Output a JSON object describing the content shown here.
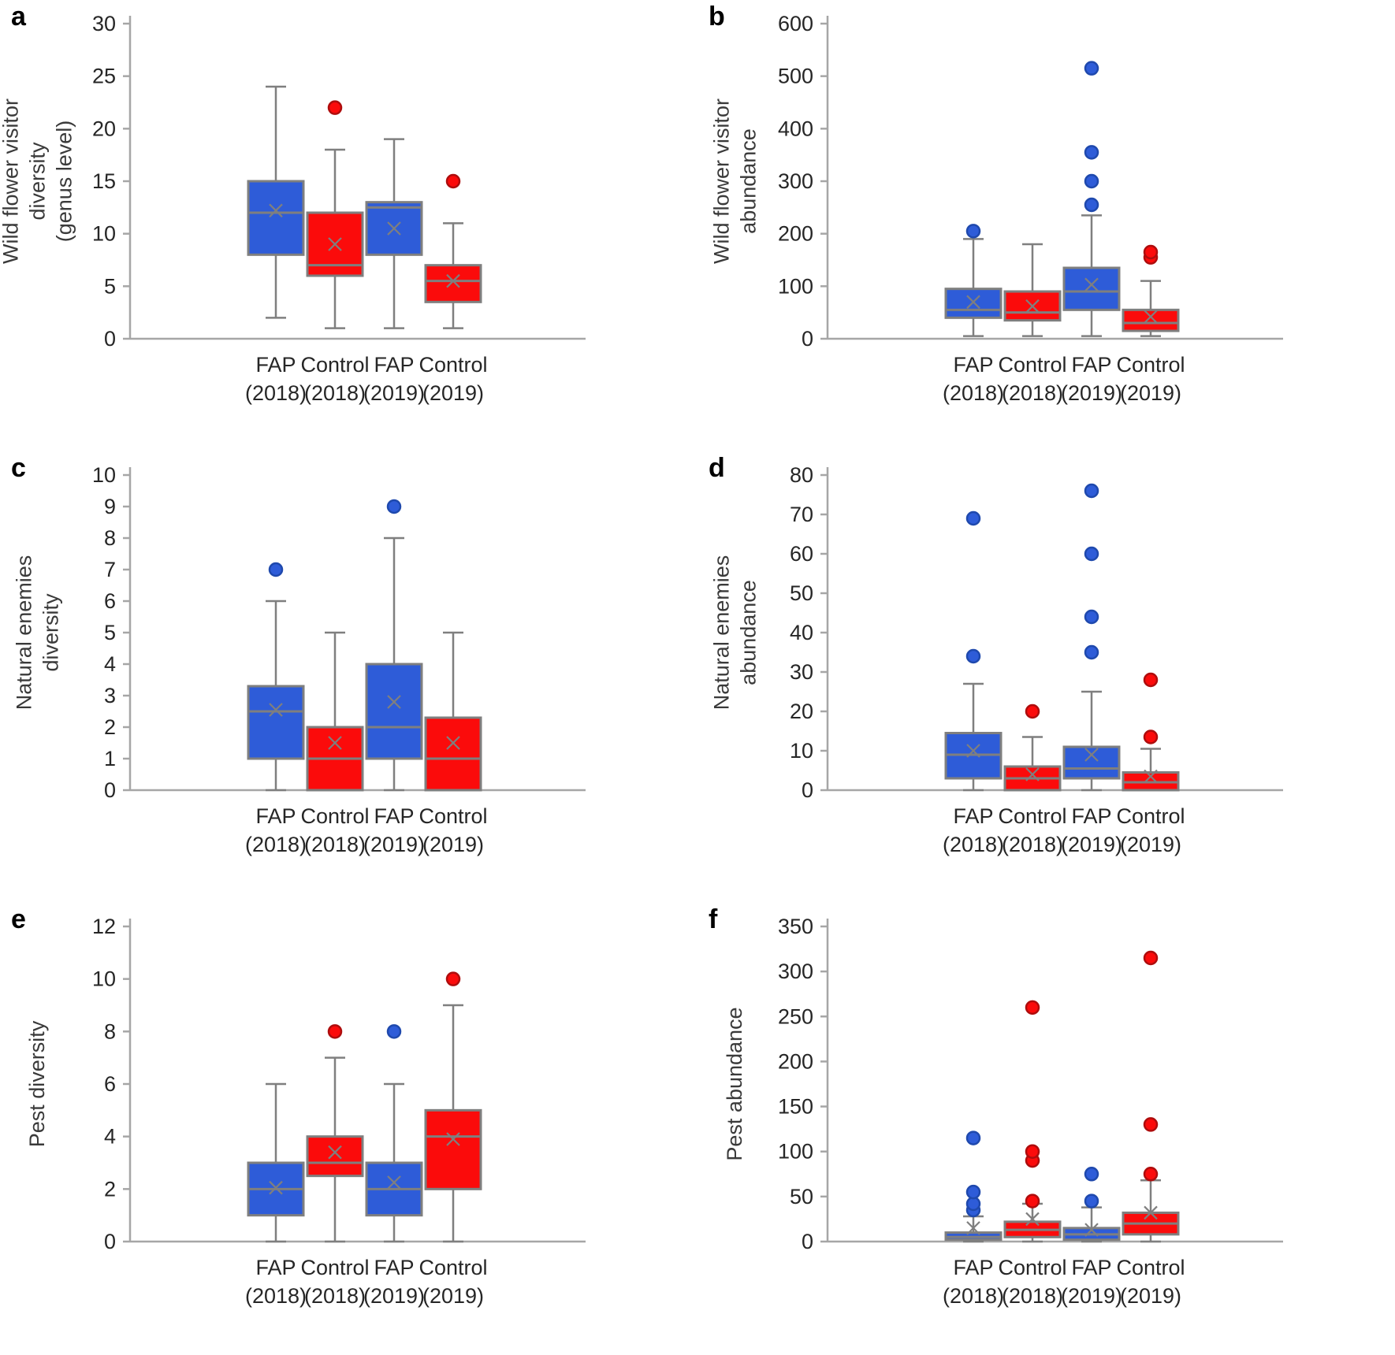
{
  "colors": {
    "blue": "#2e5cd8",
    "blue_edge": "#1f49ad",
    "red": "#fb0b0b",
    "red_edge": "#ae0d0d",
    "box_stroke": "#7f7f7f",
    "axis": "#a6a6a6",
    "mean_marker": "#7f7f7f",
    "text": "#262626"
  },
  "chart_data": [
    {
      "type": "box",
      "letter": "a",
      "ylabel": "Wild flower visitor\ndiversity\n(genus level)",
      "ylim": [
        0,
        30
      ],
      "yticks": [
        0,
        5,
        10,
        15,
        20,
        25,
        30
      ],
      "categories": [
        [
          "FAP",
          "(2018)"
        ],
        [
          "Control",
          "(2018)"
        ],
        [
          "FAP",
          "(2019)"
        ],
        [
          "Control",
          "(2019)"
        ]
      ],
      "boxes": [
        {
          "color": "blue",
          "low": 2,
          "q1": 8,
          "median": 12,
          "mean": 12.2,
          "q3": 15,
          "high": 24,
          "outliers": []
        },
        {
          "color": "red",
          "low": 1,
          "q1": 6,
          "median": 7,
          "mean": 9,
          "q3": 12,
          "high": 18,
          "outliers": [
            22
          ]
        },
        {
          "color": "blue",
          "low": 1,
          "q1": 8,
          "median": 12.5,
          "mean": 10.5,
          "q3": 13,
          "high": 19,
          "outliers": []
        },
        {
          "color": "red",
          "low": 1,
          "q1": 3.5,
          "median": 5.5,
          "mean": 5.5,
          "q3": 7,
          "high": 11,
          "outliers": [
            15
          ]
        }
      ]
    },
    {
      "type": "box",
      "letter": "b",
      "ylabel": "Wild flower visitor\nabundance",
      "ylim": [
        0,
        600
      ],
      "yticks": [
        0,
        100,
        200,
        300,
        400,
        500,
        600
      ],
      "categories": [
        [
          "FAP",
          "(2018)"
        ],
        [
          "Control",
          "(2018)"
        ],
        [
          "FAP",
          "(2019)"
        ],
        [
          "Control",
          "(2019)"
        ]
      ],
      "boxes": [
        {
          "color": "blue",
          "low": 5,
          "q1": 40,
          "median": 55,
          "mean": 70,
          "q3": 95,
          "high": 190,
          "outliers": [
            205
          ]
        },
        {
          "color": "red",
          "low": 5,
          "q1": 35,
          "median": 50,
          "mean": 62,
          "q3": 90,
          "high": 180,
          "outliers": []
        },
        {
          "color": "blue",
          "low": 5,
          "q1": 55,
          "median": 90,
          "mean": 103,
          "q3": 135,
          "high": 235,
          "outliers": [
            255,
            300,
            355,
            515
          ]
        },
        {
          "color": "red",
          "low": 5,
          "q1": 15,
          "median": 30,
          "mean": 42,
          "q3": 55,
          "high": 110,
          "outliers": [
            155,
            165
          ]
        }
      ]
    },
    {
      "type": "box",
      "letter": "c",
      "ylabel": "Natural enemies\ndiversity",
      "ylim": [
        0,
        10
      ],
      "yticks": [
        0,
        1,
        2,
        3,
        4,
        5,
        6,
        7,
        8,
        9,
        10
      ],
      "categories": [
        [
          "FAP",
          "(2018)"
        ],
        [
          "Control",
          "(2018)"
        ],
        [
          "FAP",
          "(2019)"
        ],
        [
          "Control",
          "(2019)"
        ]
      ],
      "boxes": [
        {
          "color": "blue",
          "low": 0,
          "q1": 1,
          "median": 2.5,
          "mean": 2.55,
          "q3": 3.3,
          "high": 6,
          "outliers": [
            7
          ]
        },
        {
          "color": "red",
          "low": 0,
          "q1": 0,
          "median": 1,
          "mean": 1.5,
          "q3": 2,
          "high": 5,
          "outliers": []
        },
        {
          "color": "blue",
          "low": 0,
          "q1": 1,
          "median": 2,
          "mean": 2.8,
          "q3": 4,
          "high": 8,
          "outliers": [
            9
          ]
        },
        {
          "color": "red",
          "low": 0,
          "q1": 0,
          "median": 1,
          "mean": 1.5,
          "q3": 2.3,
          "high": 5,
          "outliers": []
        }
      ]
    },
    {
      "type": "box",
      "letter": "d",
      "ylabel": "Natural enemies\nabundance",
      "ylim": [
        0,
        80
      ],
      "yticks": [
        0,
        10,
        20,
        30,
        40,
        50,
        60,
        70,
        80
      ],
      "categories": [
        [
          "FAP",
          "(2018)"
        ],
        [
          "Control",
          "(2018)"
        ],
        [
          "FAP",
          "(2019)"
        ],
        [
          "Control",
          "(2019)"
        ]
      ],
      "boxes": [
        {
          "color": "blue",
          "low": 0,
          "q1": 3,
          "median": 9,
          "mean": 10,
          "q3": 14.5,
          "high": 27,
          "outliers": [
            34,
            69
          ]
        },
        {
          "color": "red",
          "low": 0,
          "q1": 0,
          "median": 3,
          "mean": 4,
          "q3": 6,
          "high": 13.5,
          "outliers": [
            20
          ]
        },
        {
          "color": "blue",
          "low": 0,
          "q1": 3,
          "median": 5.5,
          "mean": 9,
          "q3": 11,
          "high": 25,
          "outliers": [
            35,
            44,
            60,
            76
          ]
        },
        {
          "color": "red",
          "low": 0,
          "q1": 0,
          "median": 2,
          "mean": 3.5,
          "q3": 4.5,
          "high": 10.5,
          "outliers": [
            13.5,
            28
          ]
        }
      ]
    },
    {
      "type": "box",
      "letter": "e",
      "ylabel": "Pest diversity",
      "ylim": [
        0,
        12
      ],
      "yticks": [
        0,
        2,
        4,
        6,
        8,
        10,
        12
      ],
      "categories": [
        [
          "FAP",
          "(2018)"
        ],
        [
          "Control",
          "(2018)"
        ],
        [
          "FAP",
          "(2019)"
        ],
        [
          "Control",
          "(2019)"
        ]
      ],
      "boxes": [
        {
          "color": "blue",
          "low": 0,
          "q1": 1,
          "median": 2,
          "mean": 2.05,
          "q3": 3,
          "high": 6,
          "outliers": []
        },
        {
          "color": "red",
          "low": 0,
          "q1": 2.5,
          "median": 3,
          "mean": 3.4,
          "q3": 4,
          "high": 7,
          "outliers": [
            8
          ]
        },
        {
          "color": "blue",
          "low": 0,
          "q1": 1,
          "median": 2,
          "mean": 2.25,
          "q3": 3,
          "high": 6,
          "outliers": [
            8
          ]
        },
        {
          "color": "red",
          "low": 0,
          "q1": 2,
          "median": 4,
          "mean": 3.9,
          "q3": 5,
          "high": 9,
          "outliers": [
            10
          ]
        }
      ]
    },
    {
      "type": "box",
      "letter": "f",
      "ylabel": "Pest abundance",
      "ylim": [
        0,
        350
      ],
      "yticks": [
        0,
        50,
        100,
        150,
        200,
        250,
        300,
        350
      ],
      "categories": [
        [
          "FAP",
          "(2018)"
        ],
        [
          "Control",
          "(2018)"
        ],
        [
          "FAP",
          "(2019)"
        ],
        [
          "Control",
          "(2019)"
        ]
      ],
      "boxes": [
        {
          "color": "blue",
          "low": 0,
          "q1": 2,
          "median": 5,
          "mean": 15,
          "q3": 10,
          "high": 28,
          "outliers": [
            35,
            42,
            55,
            115
          ]
        },
        {
          "color": "red",
          "low": 0,
          "q1": 5,
          "median": 13,
          "mean": 25,
          "q3": 22,
          "high": 42,
          "outliers": [
            45,
            90,
            100,
            260
          ]
        },
        {
          "color": "blue",
          "low": 0,
          "q1": 2,
          "median": 8,
          "mean": 13,
          "q3": 15,
          "high": 38,
          "outliers": [
            45,
            75
          ]
        },
        {
          "color": "red",
          "low": 0,
          "q1": 8,
          "median": 20,
          "mean": 32,
          "q3": 32,
          "high": 68,
          "outliers": [
            75,
            130,
            315
          ]
        }
      ]
    }
  ]
}
